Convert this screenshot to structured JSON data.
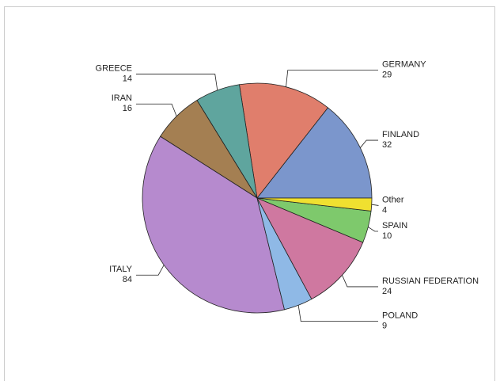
{
  "chart_data": {
    "type": "pie",
    "categories": [
      "FINLAND",
      "GERMANY",
      "GREECE",
      "IRAN",
      "ITALY",
      "POLAND",
      "RUSSIAN FEDERATION",
      "SPAIN",
      "Other"
    ],
    "values": [
      32,
      29,
      14,
      16,
      84,
      9,
      24,
      10,
      4
    ],
    "colors": [
      "#7b96cc",
      "#e07e6c",
      "#5fa59e",
      "#a47f52",
      "#b68ace",
      "#8fb9e6",
      "#cf78a0",
      "#7ec96c",
      "#f0e030"
    ]
  }
}
